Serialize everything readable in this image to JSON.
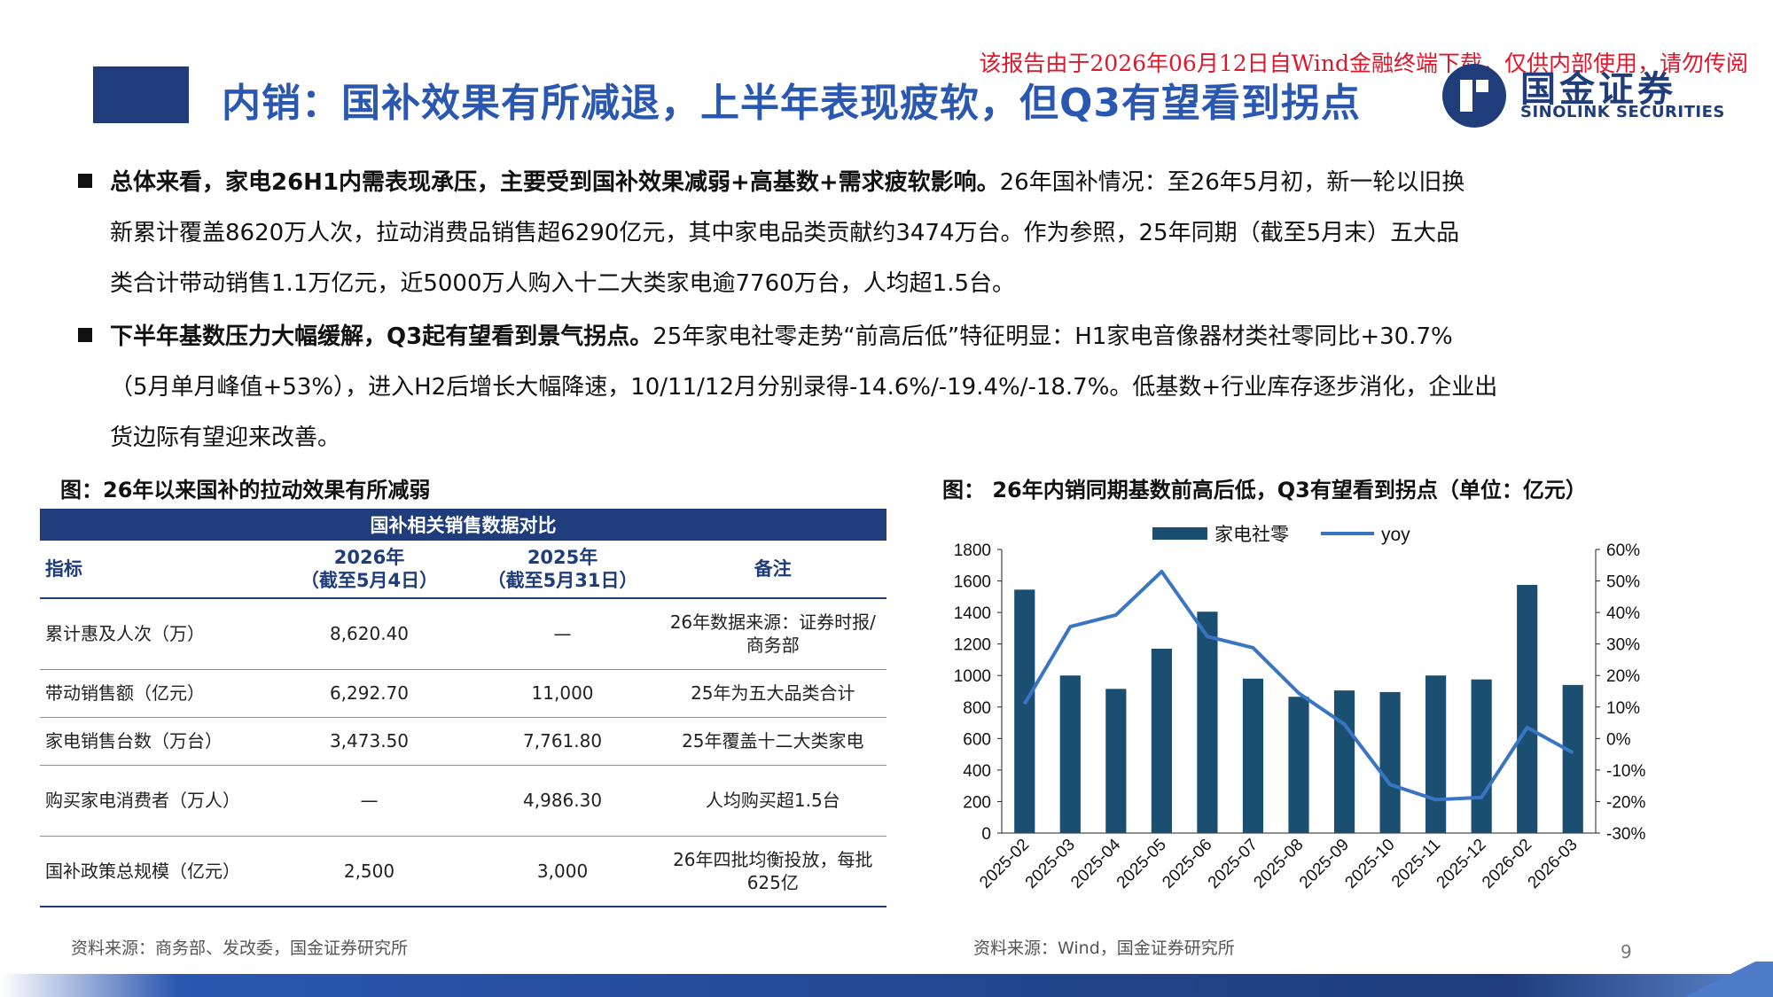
{
  "header": {
    "title": "内销：国补效果有所减退，上半年表现疲软，但Q3有望看到拐点",
    "watermark": "该报告由于2026年06月12日自Wind金融终端下载，仅供内部使用，请勿传阅",
    "logo_cn": "国金证券",
    "logo_en": "SINOLINK SECURITIES",
    "accent_color": "#1e3d7a",
    "title_color": "#2a57b0"
  },
  "bullets": [
    {
      "bold": "总体来看，家电26H1内需表现承压，主要受到国补效果减弱+高基数+需求疲软影响。",
      "line1_rest": "26年国补情况：至26年5月初，新一轮以旧换",
      "line2": "新累计覆盖8620万人次，拉动消费品销售超6290亿元，其中家电品类贡献约3474万台。作为参照，25年同期（截至5月末）五大品",
      "line3": "类合计带动销售1.1万亿元，近5000万人购入十二大类家电逾7760万台，人均超1.5台。"
    },
    {
      "bold": "下半年基数压力大幅缓解，Q3起有望看到景气拐点。",
      "line1_rest": "25年家电社零走势“前高后低”特征明显：H1家电音像器材类社零同比+30.7%",
      "line2": "（5月单月峰值+53%），进入H2后增长大幅降速，10/11/12月分别录得-14.6%/-19.4%/-18.7%。低基数+行业库存逐步消化，企业出",
      "line3": "货边际有望迎来改善。"
    }
  ],
  "figure1": {
    "title": "图：26年以来国补的拉动效果有所减弱",
    "table_caption": "国补相关销售数据对比",
    "headers": [
      "指标",
      "2026年\n（截至5月4日）",
      "2025年\n（截至5月31日）",
      "备注"
    ],
    "rows": [
      [
        "累计惠及人次（万）",
        "8,620.40",
        "—",
        "26年数据来源：证券时报/商务部"
      ],
      [
        "带动销售额（亿元）",
        "6,292.70",
        "11,000",
        "25年为五大品类合计"
      ],
      [
        "家电销售台数（万台）",
        "3,473.50",
        "7,761.80",
        "25年覆盖十二大类家电"
      ],
      [
        "购买家电消费者（万人）",
        "—",
        "4,986.30",
        "人均购买超1.5台"
      ],
      [
        "国补政策总规模（亿元）",
        "2,500",
        "3,000",
        "26年四批均衡投放，每批625亿"
      ]
    ],
    "source": "资料来源：商务部、发改委，国金证券研究所"
  },
  "figure2": {
    "title": "图：  26年内销同期基数前高后低，Q3有望看到拐点（单位：亿元）",
    "source": "资料来源：Wind，国金证券研究所"
  },
  "chart_data": {
    "type": "bar",
    "categories": [
      "2025-02",
      "2025-03",
      "2025-04",
      "2025-05",
      "2025-06",
      "2025-07",
      "2025-08",
      "2025-09",
      "2025-10",
      "2025-11",
      "2025-12",
      "2026-02",
      "2026-03"
    ],
    "series": [
      {
        "name": "家电社零",
        "type": "bar",
        "axis": "left",
        "color": "#1b4f72",
        "values": [
          1545,
          1000,
          915,
          1170,
          1405,
          980,
          865,
          905,
          895,
          1000,
          975,
          1575,
          940
        ]
      },
      {
        "name": "yoy",
        "type": "line",
        "axis": "right",
        "color": "#3a75c4",
        "values": [
          11,
          35.5,
          39.2,
          53,
          32.4,
          28.8,
          14.4,
          4.5,
          -14.6,
          -19.4,
          -18.7,
          3.5,
          -4.5
        ]
      }
    ],
    "ylim_left": [
      0,
      1800
    ],
    "yticks_left": [
      "0",
      "200",
      "400",
      "600",
      "800",
      "1000",
      "1200",
      "1400",
      "1600",
      "1800"
    ],
    "ylim_right": [
      -30,
      60
    ],
    "yticks_right": [
      "-30%",
      "-20%",
      "-10%",
      "0%",
      "10%",
      "20%",
      "30%",
      "40%",
      "50%",
      "60%"
    ],
    "legend": "top-center",
    "grid": false
  },
  "page_number": "9"
}
